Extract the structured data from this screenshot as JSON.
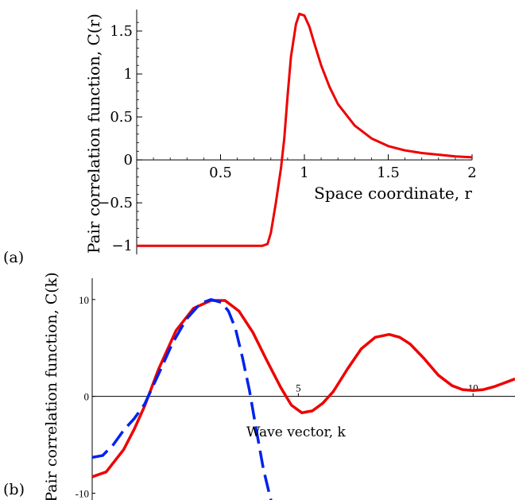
{
  "chart_data": [
    {
      "panel_label": "(a)",
      "type": "line",
      "ylabel": "Pair correlation function, C(r)",
      "xlabel": "Space coordinate, r",
      "xlim": [
        0,
        2
      ],
      "ylim": [
        -1.1,
        1.75
      ],
      "xticks": [
        "0.5",
        "1",
        "1.5",
        "2"
      ],
      "xtick_values": [
        0.5,
        1,
        1.5,
        2
      ],
      "yticks": [
        "−1",
        "−0.5",
        "0",
        "0.5",
        "1",
        "1.5"
      ],
      "ytick_values": [
        -1,
        -0.5,
        0,
        0.5,
        1,
        1.5
      ],
      "grid": false,
      "series": [
        {
          "color": "#ee0000",
          "style": "solid",
          "x": [
            0.0,
            0.2,
            0.4,
            0.6,
            0.75,
            0.78,
            0.8,
            0.83,
            0.86,
            0.88,
            0.9,
            0.92,
            0.95,
            0.97,
            1.0,
            1.03,
            1.06,
            1.1,
            1.15,
            1.2,
            1.3,
            1.4,
            1.5,
            1.6,
            1.7,
            1.8,
            1.9,
            2.0
          ],
          "y": [
            -1.0,
            -1.0,
            -1.0,
            -1.0,
            -1.0,
            -0.98,
            -0.85,
            -0.5,
            -0.1,
            0.25,
            0.75,
            1.2,
            1.58,
            1.7,
            1.68,
            1.55,
            1.35,
            1.1,
            0.85,
            0.65,
            0.4,
            0.25,
            0.16,
            0.11,
            0.08,
            0.06,
            0.04,
            0.03
          ]
        }
      ]
    },
    {
      "panel_label": "(b)",
      "type": "line",
      "ylabel": "Pair correlation function, C(k)",
      "xlabel": "Wave vector, k",
      "xlim": [
        -0.9,
        11.2
      ],
      "ylim": [
        -10.7,
        12.2
      ],
      "xticks": [
        "5",
        "10"
      ],
      "xtick_values": [
        5,
        10
      ],
      "yticks": [
        "10",
        "0",
        "-10"
      ],
      "ytick_values": [
        10,
        0,
        -10
      ],
      "grid": false,
      "series": [
        {
          "color": "#ee0000",
          "style": "solid",
          "x": [
            -0.9,
            -0.5,
            0.0,
            0.3,
            0.6,
            1.0,
            1.5,
            2.0,
            2.5,
            2.9,
            3.3,
            3.7,
            4.1,
            4.5,
            4.8,
            5.1,
            5.4,
            5.7,
            6.0,
            6.4,
            6.8,
            7.2,
            7.6,
            7.9,
            8.2,
            8.6,
            9.0,
            9.4,
            9.7,
            10.0,
            10.3,
            10.6,
            10.9,
            11.2
          ],
          "y": [
            -8.3,
            -7.8,
            -5.5,
            -3.4,
            -1.0,
            2.8,
            6.8,
            9.1,
            9.9,
            9.9,
            8.8,
            6.6,
            3.7,
            0.9,
            -0.9,
            -1.7,
            -1.5,
            -0.7,
            0.5,
            2.8,
            4.9,
            6.1,
            6.4,
            6.1,
            5.4,
            3.9,
            2.2,
            1.1,
            0.7,
            0.6,
            0.7,
            1.0,
            1.4,
            1.8
          ]
        },
        {
          "color": "#0022ee",
          "style": "dashed",
          "x": [
            -0.9,
            -0.6,
            -0.3,
            0.0,
            0.3,
            0.6,
            1.0,
            1.4,
            1.8,
            2.2,
            2.5,
            2.8,
            3.0,
            3.2,
            3.4,
            3.6,
            3.8,
            4.0,
            4.2,
            4.35
          ],
          "y": [
            -6.3,
            -6.1,
            -5.0,
            -3.5,
            -2.3,
            -0.8,
            2.3,
            5.5,
            8.0,
            9.6,
            10.0,
            9.7,
            8.8,
            7.0,
            4.0,
            0.6,
            -3.5,
            -7.5,
            -10.5,
            -12.5
          ]
        }
      ]
    }
  ]
}
